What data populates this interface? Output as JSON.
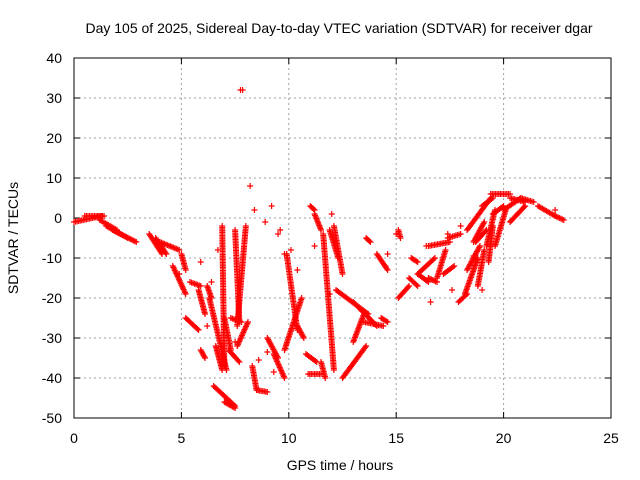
{
  "chart_data": {
    "type": "scatter",
    "title": "Day 105 of 2025, Sidereal Day-to-day VTEC variation (SDTVAR) for receiver dgar",
    "xlabel": "GPS time / hours",
    "ylabel": "SDTVAR / TECUs",
    "xlim": [
      0,
      25
    ],
    "ylim": [
      -50,
      40
    ],
    "xticks": [
      0,
      5,
      10,
      15,
      20,
      25
    ],
    "yticks": [
      -50,
      -40,
      -30,
      -20,
      -10,
      0,
      10,
      20,
      30,
      40
    ],
    "grid": true,
    "marker": "+",
    "color": "#ff0000",
    "tracks": [
      {
        "x0": 0.0,
        "x1": 1.3,
        "y0": -1,
        "y1": 0.5
      },
      {
        "x0": 0.5,
        "x1": 1.4,
        "y0": 0.5,
        "y1": 0.5
      },
      {
        "x0": 1.2,
        "x1": 2.0,
        "y0": -0.5,
        "y1": -3
      },
      {
        "x0": 1.8,
        "x1": 2.9,
        "y0": -3,
        "y1": -6
      },
      {
        "x0": 1.5,
        "x1": 2.5,
        "y0": -2,
        "y1": -5
      },
      {
        "x0": 3.5,
        "x1": 4.1,
        "y0": -4,
        "y1": -9
      },
      {
        "x0": 3.8,
        "x1": 4.3,
        "y0": -5,
        "y1": -9
      },
      {
        "x0": 4.0,
        "x1": 4.9,
        "y0": -6,
        "y1": -8
      },
      {
        "x0": 4.6,
        "x1": 5.2,
        "y0": -12,
        "y1": -19
      },
      {
        "x0": 5.0,
        "x1": 5.2,
        "y0": -9,
        "y1": -13
      },
      {
        "x0": 5.2,
        "x1": 5.8,
        "y0": -25,
        "y1": -28
      },
      {
        "x0": 5.4,
        "x1": 5.9,
        "y0": -16,
        "y1": -17
      },
      {
        "x0": 5.8,
        "x1": 6.1,
        "y0": -18,
        "y1": -24
      },
      {
        "x0": 5.9,
        "x1": 6.1,
        "y0": -33,
        "y1": -35
      },
      {
        "x0": 6.2,
        "x1": 6.4,
        "y0": -17,
        "y1": -20
      },
      {
        "x0": 6.3,
        "x1": 7.1,
        "y0": -20,
        "y1": -38
      },
      {
        "x0": 6.6,
        "x1": 6.9,
        "y0": -32,
        "y1": -38
      },
      {
        "x0": 6.9,
        "x1": 7.0,
        "y0": -2,
        "y1": -37
      },
      {
        "x0": 7.0,
        "x1": 7.3,
        "y0": -25,
        "y1": -33
      },
      {
        "x0": 7.2,
        "x1": 7.7,
        "y0": -33,
        "y1": -36
      },
      {
        "x0": 7.6,
        "x1": 8.1,
        "y0": -32,
        "y1": -26
      },
      {
        "x0": 7.3,
        "x1": 7.8,
        "y0": -25,
        "y1": -26
      },
      {
        "x0": 7.5,
        "x1": 7.7,
        "y0": -3,
        "y1": -26
      },
      {
        "x0": 7.6,
        "x1": 8.0,
        "y0": -27,
        "y1": -2
      },
      {
        "x0": 6.5,
        "x1": 7.5,
        "y0": -42,
        "y1": -47
      },
      {
        "x0": 7.0,
        "x1": 7.5,
        "y0": -46,
        "y1": -47.5
      },
      {
        "x0": 8.3,
        "x1": 8.5,
        "y0": -37,
        "y1": -43
      },
      {
        "x0": 8.5,
        "x1": 9.0,
        "y0": -43,
        "y1": -43.5
      },
      {
        "x0": 9.0,
        "x1": 9.5,
        "y0": -30,
        "y1": -35
      },
      {
        "x0": 9.3,
        "x1": 9.8,
        "y0": -34,
        "y1": -40
      },
      {
        "x0": 9.8,
        "x1": 10.6,
        "y0": -33,
        "y1": -20
      },
      {
        "x0": 9.9,
        "x1": 10.4,
        "y0": -9,
        "y1": -28
      },
      {
        "x0": 10.4,
        "x1": 10.7,
        "y0": -27,
        "y1": -30
      },
      {
        "x0": 10.8,
        "x1": 11.3,
        "y0": -34,
        "y1": -36
      },
      {
        "x0": 10.9,
        "x1": 11.5,
        "y0": -39,
        "y1": -39
      },
      {
        "x0": 11.0,
        "x1": 11.2,
        "y0": 3,
        "y1": 2
      },
      {
        "x0": 11.2,
        "x1": 11.5,
        "y0": 1,
        "y1": -3
      },
      {
        "x0": 11.5,
        "x1": 11.7,
        "y0": -36,
        "y1": -40
      },
      {
        "x0": 11.6,
        "x1": 12.1,
        "y0": -4,
        "y1": -38
      },
      {
        "x0": 11.9,
        "x1": 12.3,
        "y0": -3,
        "y1": -10
      },
      {
        "x0": 12.1,
        "x1": 12.5,
        "y0": -2,
        "y1": -14
      },
      {
        "x0": 12.5,
        "x1": 13.6,
        "y0": -40,
        "y1": -32
      },
      {
        "x0": 13.0,
        "x1": 13.5,
        "y0": -31,
        "y1": -24
      },
      {
        "x0": 12.2,
        "x1": 13.7,
        "y0": -18,
        "y1": -24
      },
      {
        "x0": 13.0,
        "x1": 14.1,
        "y0": -21,
        "y1": -27
      },
      {
        "x0": 13.5,
        "x1": 14.4,
        "y0": -26,
        "y1": -27
      },
      {
        "x0": 13.6,
        "x1": 13.8,
        "y0": -5,
        "y1": -6
      },
      {
        "x0": 14.1,
        "x1": 14.6,
        "y0": -9,
        "y1": -13
      },
      {
        "x0": 14.3,
        "x1": 14.6,
        "y0": -25,
        "y1": -26
      },
      {
        "x0": 15.1,
        "x1": 15.2,
        "y0": -3,
        "y1": -5
      },
      {
        "x0": 15.1,
        "x1": 15.6,
        "y0": -20,
        "y1": -17
      },
      {
        "x0": 15.6,
        "x1": 16.0,
        "y0": -15,
        "y1": -17
      },
      {
        "x0": 15.7,
        "x1": 16.0,
        "y0": -10,
        "y1": -11
      },
      {
        "x0": 16.0,
        "x1": 16.5,
        "y0": -14,
        "y1": -16
      },
      {
        "x0": 16.0,
        "x1": 16.8,
        "y0": -14,
        "y1": -10
      },
      {
        "x0": 16.5,
        "x1": 16.9,
        "y0": -15,
        "y1": -16
      },
      {
        "x0": 16.5,
        "x1": 17.5,
        "y0": -7,
        "y1": -6
      },
      {
        "x0": 16.9,
        "x1": 17.3,
        "y0": -15,
        "y1": -8
      },
      {
        "x0": 17.2,
        "x1": 17.7,
        "y0": -14,
        "y1": -12
      },
      {
        "x0": 17.4,
        "x1": 18.0,
        "y0": -5,
        "y1": -4
      },
      {
        "x0": 17.9,
        "x1": 18.3,
        "y0": -21,
        "y1": -19
      },
      {
        "x0": 18.2,
        "x1": 18.8,
        "y0": -19,
        "y1": -10
      },
      {
        "x0": 18.3,
        "x1": 18.9,
        "y0": -13,
        "y1": -7
      },
      {
        "x0": 18.3,
        "x1": 19.4,
        "y0": -3,
        "y1": 5
      },
      {
        "x0": 18.6,
        "x1": 19.1,
        "y0": -6,
        "y1": -1
      },
      {
        "x0": 18.7,
        "x1": 19.2,
        "y0": -6,
        "y1": -3
      },
      {
        "x0": 18.8,
        "x1": 19.1,
        "y0": -17,
        "y1": -8
      },
      {
        "x0": 19.0,
        "x1": 19.5,
        "y0": 3,
        "y1": 5
      },
      {
        "x0": 19.2,
        "x1": 19.6,
        "y0": -7,
        "y1": 2
      },
      {
        "x0": 19.3,
        "x1": 19.5,
        "y0": -11,
        "y1": -2
      },
      {
        "x0": 19.4,
        "x1": 20.3,
        "y0": 6,
        "y1": 6
      },
      {
        "x0": 19.5,
        "x1": 20.0,
        "y0": 1,
        "y1": 3
      },
      {
        "x0": 19.6,
        "x1": 20.1,
        "y0": -7,
        "y1": 2
      },
      {
        "x0": 20.0,
        "x1": 20.8,
        "y0": 2,
        "y1": 5
      },
      {
        "x0": 20.3,
        "x1": 21.0,
        "y0": 5,
        "y1": 4
      },
      {
        "x0": 20.3,
        "x1": 21.0,
        "y0": -1,
        "y1": 3
      },
      {
        "x0": 20.8,
        "x1": 21.4,
        "y0": 5,
        "y1": 4
      },
      {
        "x0": 21.6,
        "x1": 22.4,
        "y0": 3,
        "y1": 0.5
      },
      {
        "x0": 22.4,
        "x1": 22.8,
        "y0": 0.5,
        "y1": -0.5
      }
    ],
    "isolated_points": [
      [
        7.75,
        32
      ],
      [
        7.85,
        32
      ],
      [
        8.2,
        8
      ],
      [
        8.4,
        2
      ],
      [
        8.9,
        -1
      ],
      [
        9.2,
        3
      ],
      [
        9.6,
        -3
      ],
      [
        9.8,
        -9
      ],
      [
        9.5,
        -4
      ],
      [
        7.5,
        -31
      ],
      [
        8.6,
        -35.5
      ],
      [
        9.0,
        -33.5
      ],
      [
        9.3,
        -38.5
      ],
      [
        10.1,
        -8
      ],
      [
        12.0,
        1
      ],
      [
        14.5,
        -12
      ],
      [
        14.6,
        -9
      ],
      [
        16.4,
        -7
      ],
      [
        17.6,
        -18
      ],
      [
        17.4,
        -4
      ],
      [
        18.0,
        -2
      ],
      [
        18.6,
        -9.5
      ],
      [
        19.0,
        -18
      ],
      [
        22.4,
        2
      ],
      [
        6.2,
        -27
      ],
      [
        6.4,
        -16
      ],
      [
        6.7,
        -8
      ],
      [
        5.9,
        -11
      ],
      [
        4.9,
        -14
      ],
      [
        10.4,
        -13
      ],
      [
        11.2,
        -7
      ],
      [
        11.9,
        -19
      ],
      [
        15.0,
        -4
      ],
      [
        16.6,
        -21
      ]
    ]
  }
}
